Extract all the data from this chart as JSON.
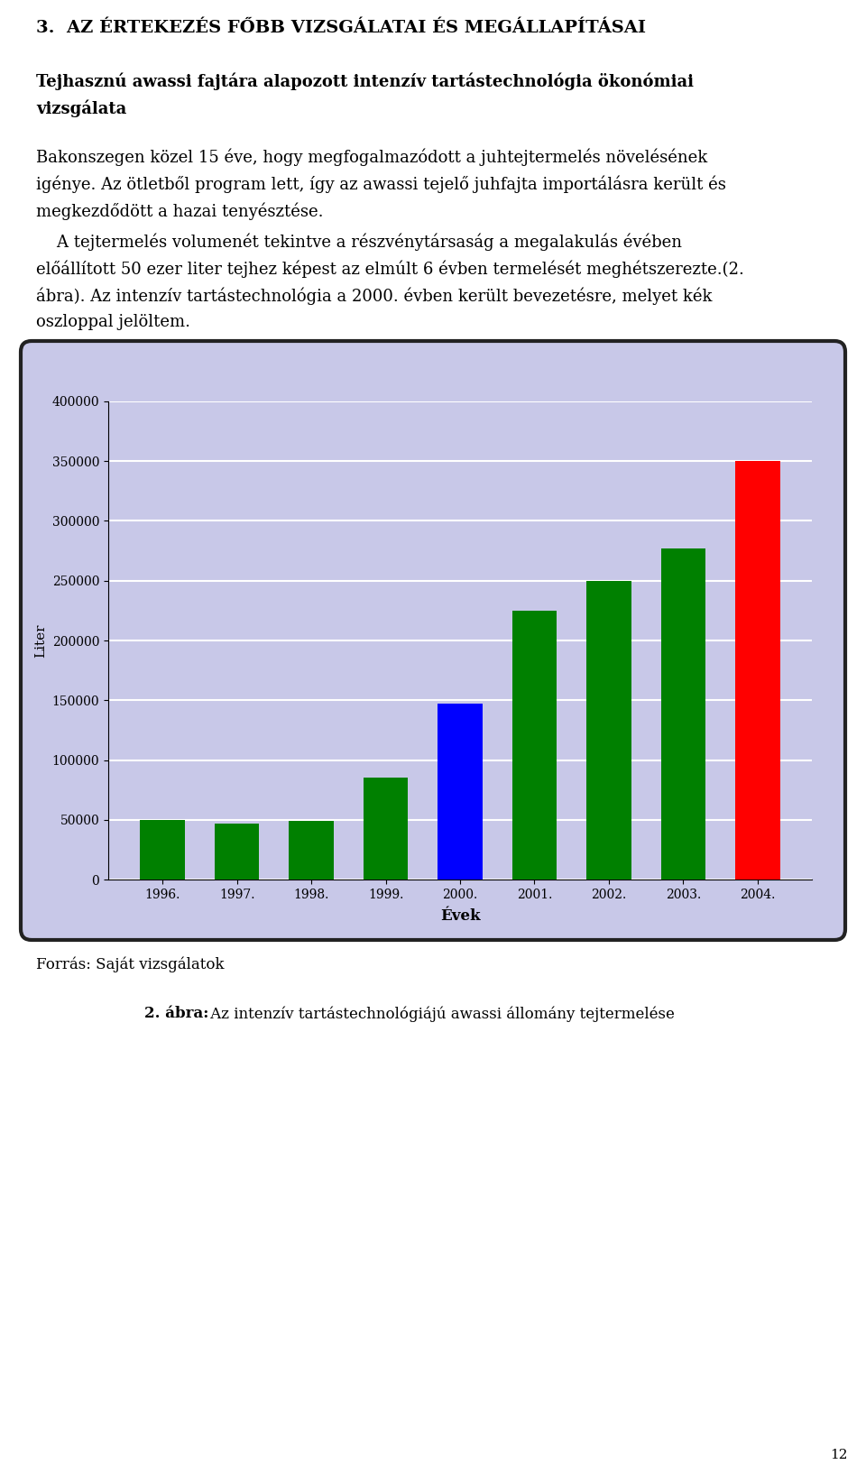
{
  "years": [
    "1996.",
    "1997.",
    "1998.",
    "1999.",
    "2000.",
    "2001.",
    "2002.",
    "2003.",
    "2004."
  ],
  "values": [
    50000,
    47000,
    49000,
    85000,
    147000,
    225000,
    250000,
    277000,
    350000
  ],
  "bar_colors": [
    "#008000",
    "#008000",
    "#008000",
    "#008000",
    "#0000FF",
    "#008000",
    "#008000",
    "#008000",
    "#FF0000"
  ],
  "ylabel": "Liter",
  "xlabel": "Évek",
  "ylim": [
    0,
    400000
  ],
  "yticks": [
    0,
    50000,
    100000,
    150000,
    200000,
    250000,
    300000,
    350000,
    400000
  ],
  "chart_bg_color": "#C8C8E8",
  "grid_color": "#FFFFFF",
  "source_text": "Forrás: Saját vizsgálatok",
  "caption_bold": "2. ábra:",
  "caption_normal": " Az intenzív tartástechnológiájú awassi állomány tejtermelése",
  "title_text": "3.  AZ ÉRTEKEZÉS FŐBB VIZSGÁLATAI ÉS MEGÁLLAPÍTÁSAI",
  "heading_line1": "Tejhasznú awassi fajtára alapozott intenzív tartástechnológia ökonómiai",
  "heading_line2": "vizsgálata",
  "para1_line1": "Bakonszegen közel 15 éve, hogy megfogalmazódott a juhtejtermelés növelésének",
  "para1_line2": "igénye. Az ötletből program lett, így az awassi tejelő juhfajta importálásra került és",
  "para1_line3": "megkezdődött a hazai tenyésztése.",
  "para2_line1": "    A tejtermelés volumenét tekintve a részvénytársaság a megalakulás évében",
  "para2_line2": "előállított 50 ezer liter tejhez képest az elmúlt 6 évben termelését meghétszerezte.(2.",
  "para2_line3": "ábra). Az intenzív tartástechnológia a 2000. évben került bevezetésre, melyet kék",
  "para2_line4": "oszloppal jelöltem.",
  "page_number": "12"
}
